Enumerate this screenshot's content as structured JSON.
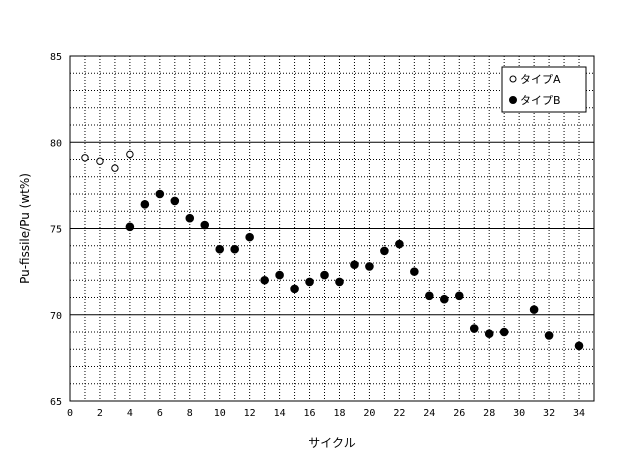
{
  "chart_data": {
    "type": "scatter",
    "title": "",
    "xlabel": "サイクル",
    "ylabel": "Pu-fissile/Pu (wt%)",
    "xlim": [
      0,
      35
    ],
    "ylim": [
      65,
      85
    ],
    "x_ticks": [
      0,
      2,
      4,
      6,
      8,
      10,
      12,
      14,
      16,
      18,
      20,
      22,
      24,
      26,
      28,
      30,
      32,
      34
    ],
    "y_ticks": [
      65,
      70,
      75,
      80,
      85
    ],
    "grid": true,
    "legend_position": "top-right",
    "series": [
      {
        "name": "タイプA",
        "marker": "open-circle",
        "color": "#000000",
        "points": [
          [
            1,
            79.1
          ],
          [
            2,
            78.9
          ],
          [
            3,
            78.5
          ],
          [
            4,
            79.3
          ]
        ]
      },
      {
        "name": "タイプB",
        "marker": "filled-circle",
        "color": "#000000",
        "points": [
          [
            4,
            75.1
          ],
          [
            5,
            76.4
          ],
          [
            6,
            77.0
          ],
          [
            7,
            76.6
          ],
          [
            8,
            75.6
          ],
          [
            9,
            75.2
          ],
          [
            10,
            73.8
          ],
          [
            11,
            73.8
          ],
          [
            12,
            74.5
          ],
          [
            13,
            72.0
          ],
          [
            14,
            72.3
          ],
          [
            15,
            71.5
          ],
          [
            16,
            71.9
          ],
          [
            17,
            72.3
          ],
          [
            18,
            71.9
          ],
          [
            19,
            72.9
          ],
          [
            20,
            72.8
          ],
          [
            21,
            73.7
          ],
          [
            22,
            74.1
          ],
          [
            23,
            72.5
          ],
          [
            24,
            71.1
          ],
          [
            25,
            70.9
          ],
          [
            26,
            71.1
          ],
          [
            27,
            69.2
          ],
          [
            28,
            68.9
          ],
          [
            29,
            69.0
          ],
          [
            31,
            70.3
          ],
          [
            32,
            68.8
          ],
          [
            34,
            68.2
          ]
        ]
      }
    ]
  }
}
